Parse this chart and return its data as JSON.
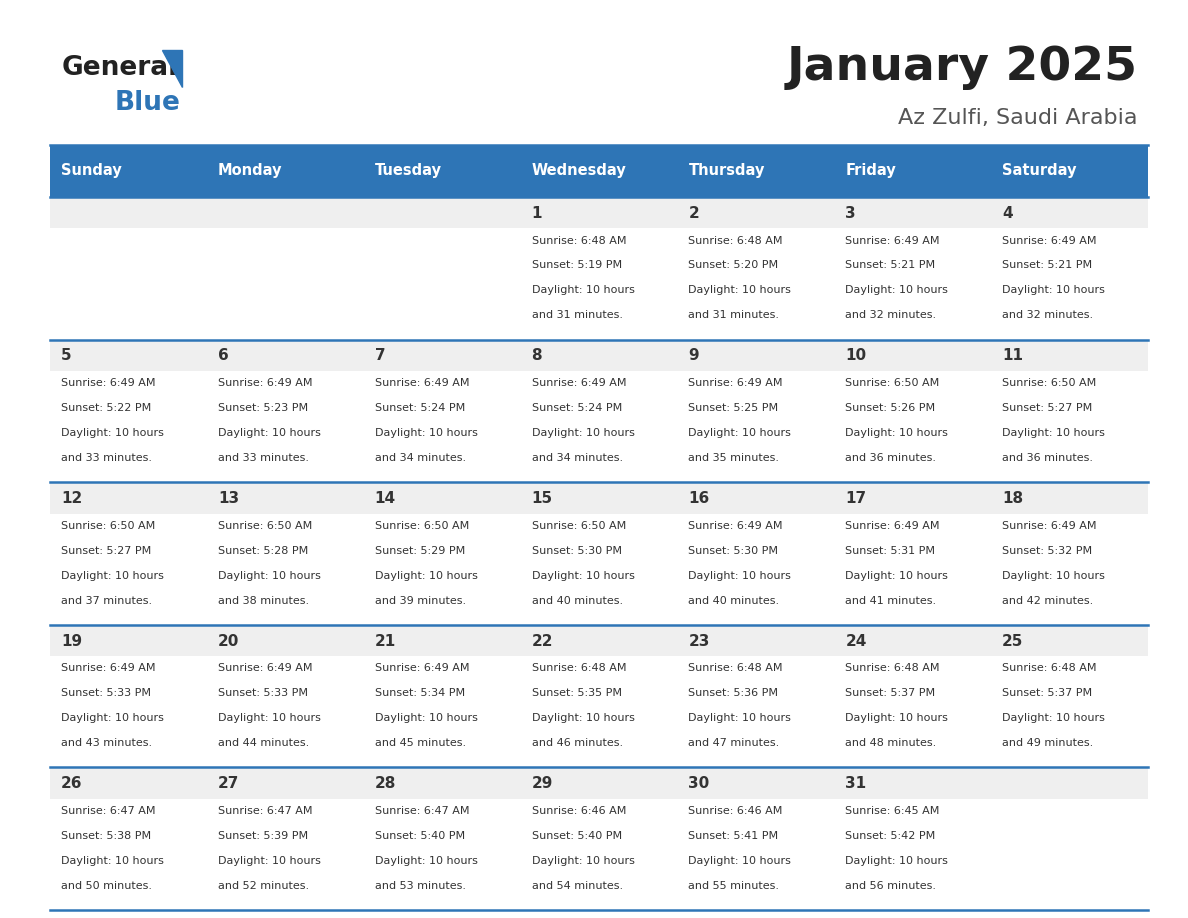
{
  "title": "January 2025",
  "subtitle": "Az Zulfi, Saudi Arabia",
  "days_of_week": [
    "Sunday",
    "Monday",
    "Tuesday",
    "Wednesday",
    "Thursday",
    "Friday",
    "Saturday"
  ],
  "header_bg": "#2E75B6",
  "header_text": "#FFFFFF",
  "cell_bg_light": "#EFEFEF",
  "cell_text": "#333333",
  "border_color": "#2E75B6",
  "title_color": "#222222",
  "subtitle_color": "#555555",
  "logo_general_color": "#222222",
  "logo_blue_color": "#2E75B6",
  "calendar_data": [
    [
      null,
      null,
      null,
      {
        "day": 1,
        "sunrise": "6:48 AM",
        "sunset": "5:19 PM",
        "daylight": "10 hours",
        "daylight2": "and 31 minutes."
      },
      {
        "day": 2,
        "sunrise": "6:48 AM",
        "sunset": "5:20 PM",
        "daylight": "10 hours",
        "daylight2": "and 31 minutes."
      },
      {
        "day": 3,
        "sunrise": "6:49 AM",
        "sunset": "5:21 PM",
        "daylight": "10 hours",
        "daylight2": "and 32 minutes."
      },
      {
        "day": 4,
        "sunrise": "6:49 AM",
        "sunset": "5:21 PM",
        "daylight": "10 hours",
        "daylight2": "and 32 minutes."
      }
    ],
    [
      {
        "day": 5,
        "sunrise": "6:49 AM",
        "sunset": "5:22 PM",
        "daylight": "10 hours",
        "daylight2": "and 33 minutes."
      },
      {
        "day": 6,
        "sunrise": "6:49 AM",
        "sunset": "5:23 PM",
        "daylight": "10 hours",
        "daylight2": "and 33 minutes."
      },
      {
        "day": 7,
        "sunrise": "6:49 AM",
        "sunset": "5:24 PM",
        "daylight": "10 hours",
        "daylight2": "and 34 minutes."
      },
      {
        "day": 8,
        "sunrise": "6:49 AM",
        "sunset": "5:24 PM",
        "daylight": "10 hours",
        "daylight2": "and 34 minutes."
      },
      {
        "day": 9,
        "sunrise": "6:49 AM",
        "sunset": "5:25 PM",
        "daylight": "10 hours",
        "daylight2": "and 35 minutes."
      },
      {
        "day": 10,
        "sunrise": "6:50 AM",
        "sunset": "5:26 PM",
        "daylight": "10 hours",
        "daylight2": "and 36 minutes."
      },
      {
        "day": 11,
        "sunrise": "6:50 AM",
        "sunset": "5:27 PM",
        "daylight": "10 hours",
        "daylight2": "and 36 minutes."
      }
    ],
    [
      {
        "day": 12,
        "sunrise": "6:50 AM",
        "sunset": "5:27 PM",
        "daylight": "10 hours",
        "daylight2": "and 37 minutes."
      },
      {
        "day": 13,
        "sunrise": "6:50 AM",
        "sunset": "5:28 PM",
        "daylight": "10 hours",
        "daylight2": "and 38 minutes."
      },
      {
        "day": 14,
        "sunrise": "6:50 AM",
        "sunset": "5:29 PM",
        "daylight": "10 hours",
        "daylight2": "and 39 minutes."
      },
      {
        "day": 15,
        "sunrise": "6:50 AM",
        "sunset": "5:30 PM",
        "daylight": "10 hours",
        "daylight2": "and 40 minutes."
      },
      {
        "day": 16,
        "sunrise": "6:49 AM",
        "sunset": "5:30 PM",
        "daylight": "10 hours",
        "daylight2": "and 40 minutes."
      },
      {
        "day": 17,
        "sunrise": "6:49 AM",
        "sunset": "5:31 PM",
        "daylight": "10 hours",
        "daylight2": "and 41 minutes."
      },
      {
        "day": 18,
        "sunrise": "6:49 AM",
        "sunset": "5:32 PM",
        "daylight": "10 hours",
        "daylight2": "and 42 minutes."
      }
    ],
    [
      {
        "day": 19,
        "sunrise": "6:49 AM",
        "sunset": "5:33 PM",
        "daylight": "10 hours",
        "daylight2": "and 43 minutes."
      },
      {
        "day": 20,
        "sunrise": "6:49 AM",
        "sunset": "5:33 PM",
        "daylight": "10 hours",
        "daylight2": "and 44 minutes."
      },
      {
        "day": 21,
        "sunrise": "6:49 AM",
        "sunset": "5:34 PM",
        "daylight": "10 hours",
        "daylight2": "and 45 minutes."
      },
      {
        "day": 22,
        "sunrise": "6:48 AM",
        "sunset": "5:35 PM",
        "daylight": "10 hours",
        "daylight2": "and 46 minutes."
      },
      {
        "day": 23,
        "sunrise": "6:48 AM",
        "sunset": "5:36 PM",
        "daylight": "10 hours",
        "daylight2": "and 47 minutes."
      },
      {
        "day": 24,
        "sunrise": "6:48 AM",
        "sunset": "5:37 PM",
        "daylight": "10 hours",
        "daylight2": "and 48 minutes."
      },
      {
        "day": 25,
        "sunrise": "6:48 AM",
        "sunset": "5:37 PM",
        "daylight": "10 hours",
        "daylight2": "and 49 minutes."
      }
    ],
    [
      {
        "day": 26,
        "sunrise": "6:47 AM",
        "sunset": "5:38 PM",
        "daylight": "10 hours",
        "daylight2": "and 50 minutes."
      },
      {
        "day": 27,
        "sunrise": "6:47 AM",
        "sunset": "5:39 PM",
        "daylight": "10 hours",
        "daylight2": "and 52 minutes."
      },
      {
        "day": 28,
        "sunrise": "6:47 AM",
        "sunset": "5:40 PM",
        "daylight": "10 hours",
        "daylight2": "and 53 minutes."
      },
      {
        "day": 29,
        "sunrise": "6:46 AM",
        "sunset": "5:40 PM",
        "daylight": "10 hours",
        "daylight2": "and 54 minutes."
      },
      {
        "day": 30,
        "sunrise": "6:46 AM",
        "sunset": "5:41 PM",
        "daylight": "10 hours",
        "daylight2": "and 55 minutes."
      },
      {
        "day": 31,
        "sunrise": "6:45 AM",
        "sunset": "5:42 PM",
        "daylight": "10 hours",
        "daylight2": "and 56 minutes."
      },
      null
    ]
  ]
}
